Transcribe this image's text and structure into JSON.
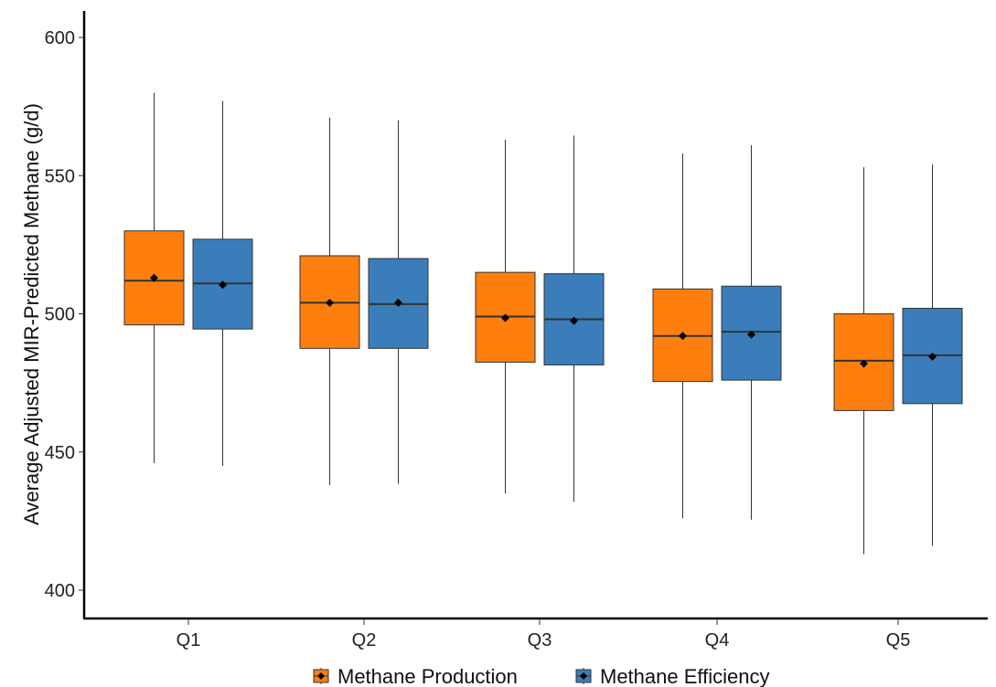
{
  "chart_data": {
    "type": "boxplot",
    "title": "",
    "xlabel": "",
    "ylabel": "Average Adjusted MIR-Predicted Methane (g/d)",
    "ylim": [
      390,
      610
    ],
    "yticks": [
      400,
      450,
      500,
      550,
      600
    ],
    "grid": false,
    "legend_position": "bottom",
    "categories": [
      "Q1",
      "Q2",
      "Q3",
      "Q4",
      "Q5"
    ],
    "series": [
      {
        "name": "Methane Production",
        "color": "#FF7F0E",
        "boxes": [
          {
            "min": 446,
            "q1": 496,
            "median": 512,
            "q3": 530,
            "max": 580,
            "mean": 513
          },
          {
            "min": 438,
            "q1": 487.5,
            "median": 504,
            "q3": 521,
            "max": 571,
            "mean": 504
          },
          {
            "min": 435,
            "q1": 482.5,
            "median": 499,
            "q3": 515,
            "max": 563,
            "mean": 498.5
          },
          {
            "min": 426,
            "q1": 475.5,
            "median": 492,
            "q3": 509,
            "max": 558,
            "mean": 492
          },
          {
            "min": 413,
            "q1": 465,
            "median": 483,
            "q3": 500,
            "max": 553,
            "mean": 482
          }
        ]
      },
      {
        "name": "Methane Efficiency",
        "color": "#3A7DBA",
        "boxes": [
          {
            "min": 445,
            "q1": 494.5,
            "median": 511,
            "q3": 527,
            "max": 577,
            "mean": 510.5
          },
          {
            "min": 438.5,
            "q1": 487.5,
            "median": 503.5,
            "q3": 520,
            "max": 570,
            "mean": 504
          },
          {
            "min": 432,
            "q1": 481.5,
            "median": 498,
            "q3": 514.5,
            "max": 564.5,
            "mean": 497.5
          },
          {
            "min": 425.5,
            "q1": 476,
            "median": 493.5,
            "q3": 510,
            "max": 561,
            "mean": 492.5
          },
          {
            "min": 416,
            "q1": 467.5,
            "median": 485,
            "q3": 502,
            "max": 554,
            "mean": 484.5
          }
        ]
      }
    ]
  }
}
